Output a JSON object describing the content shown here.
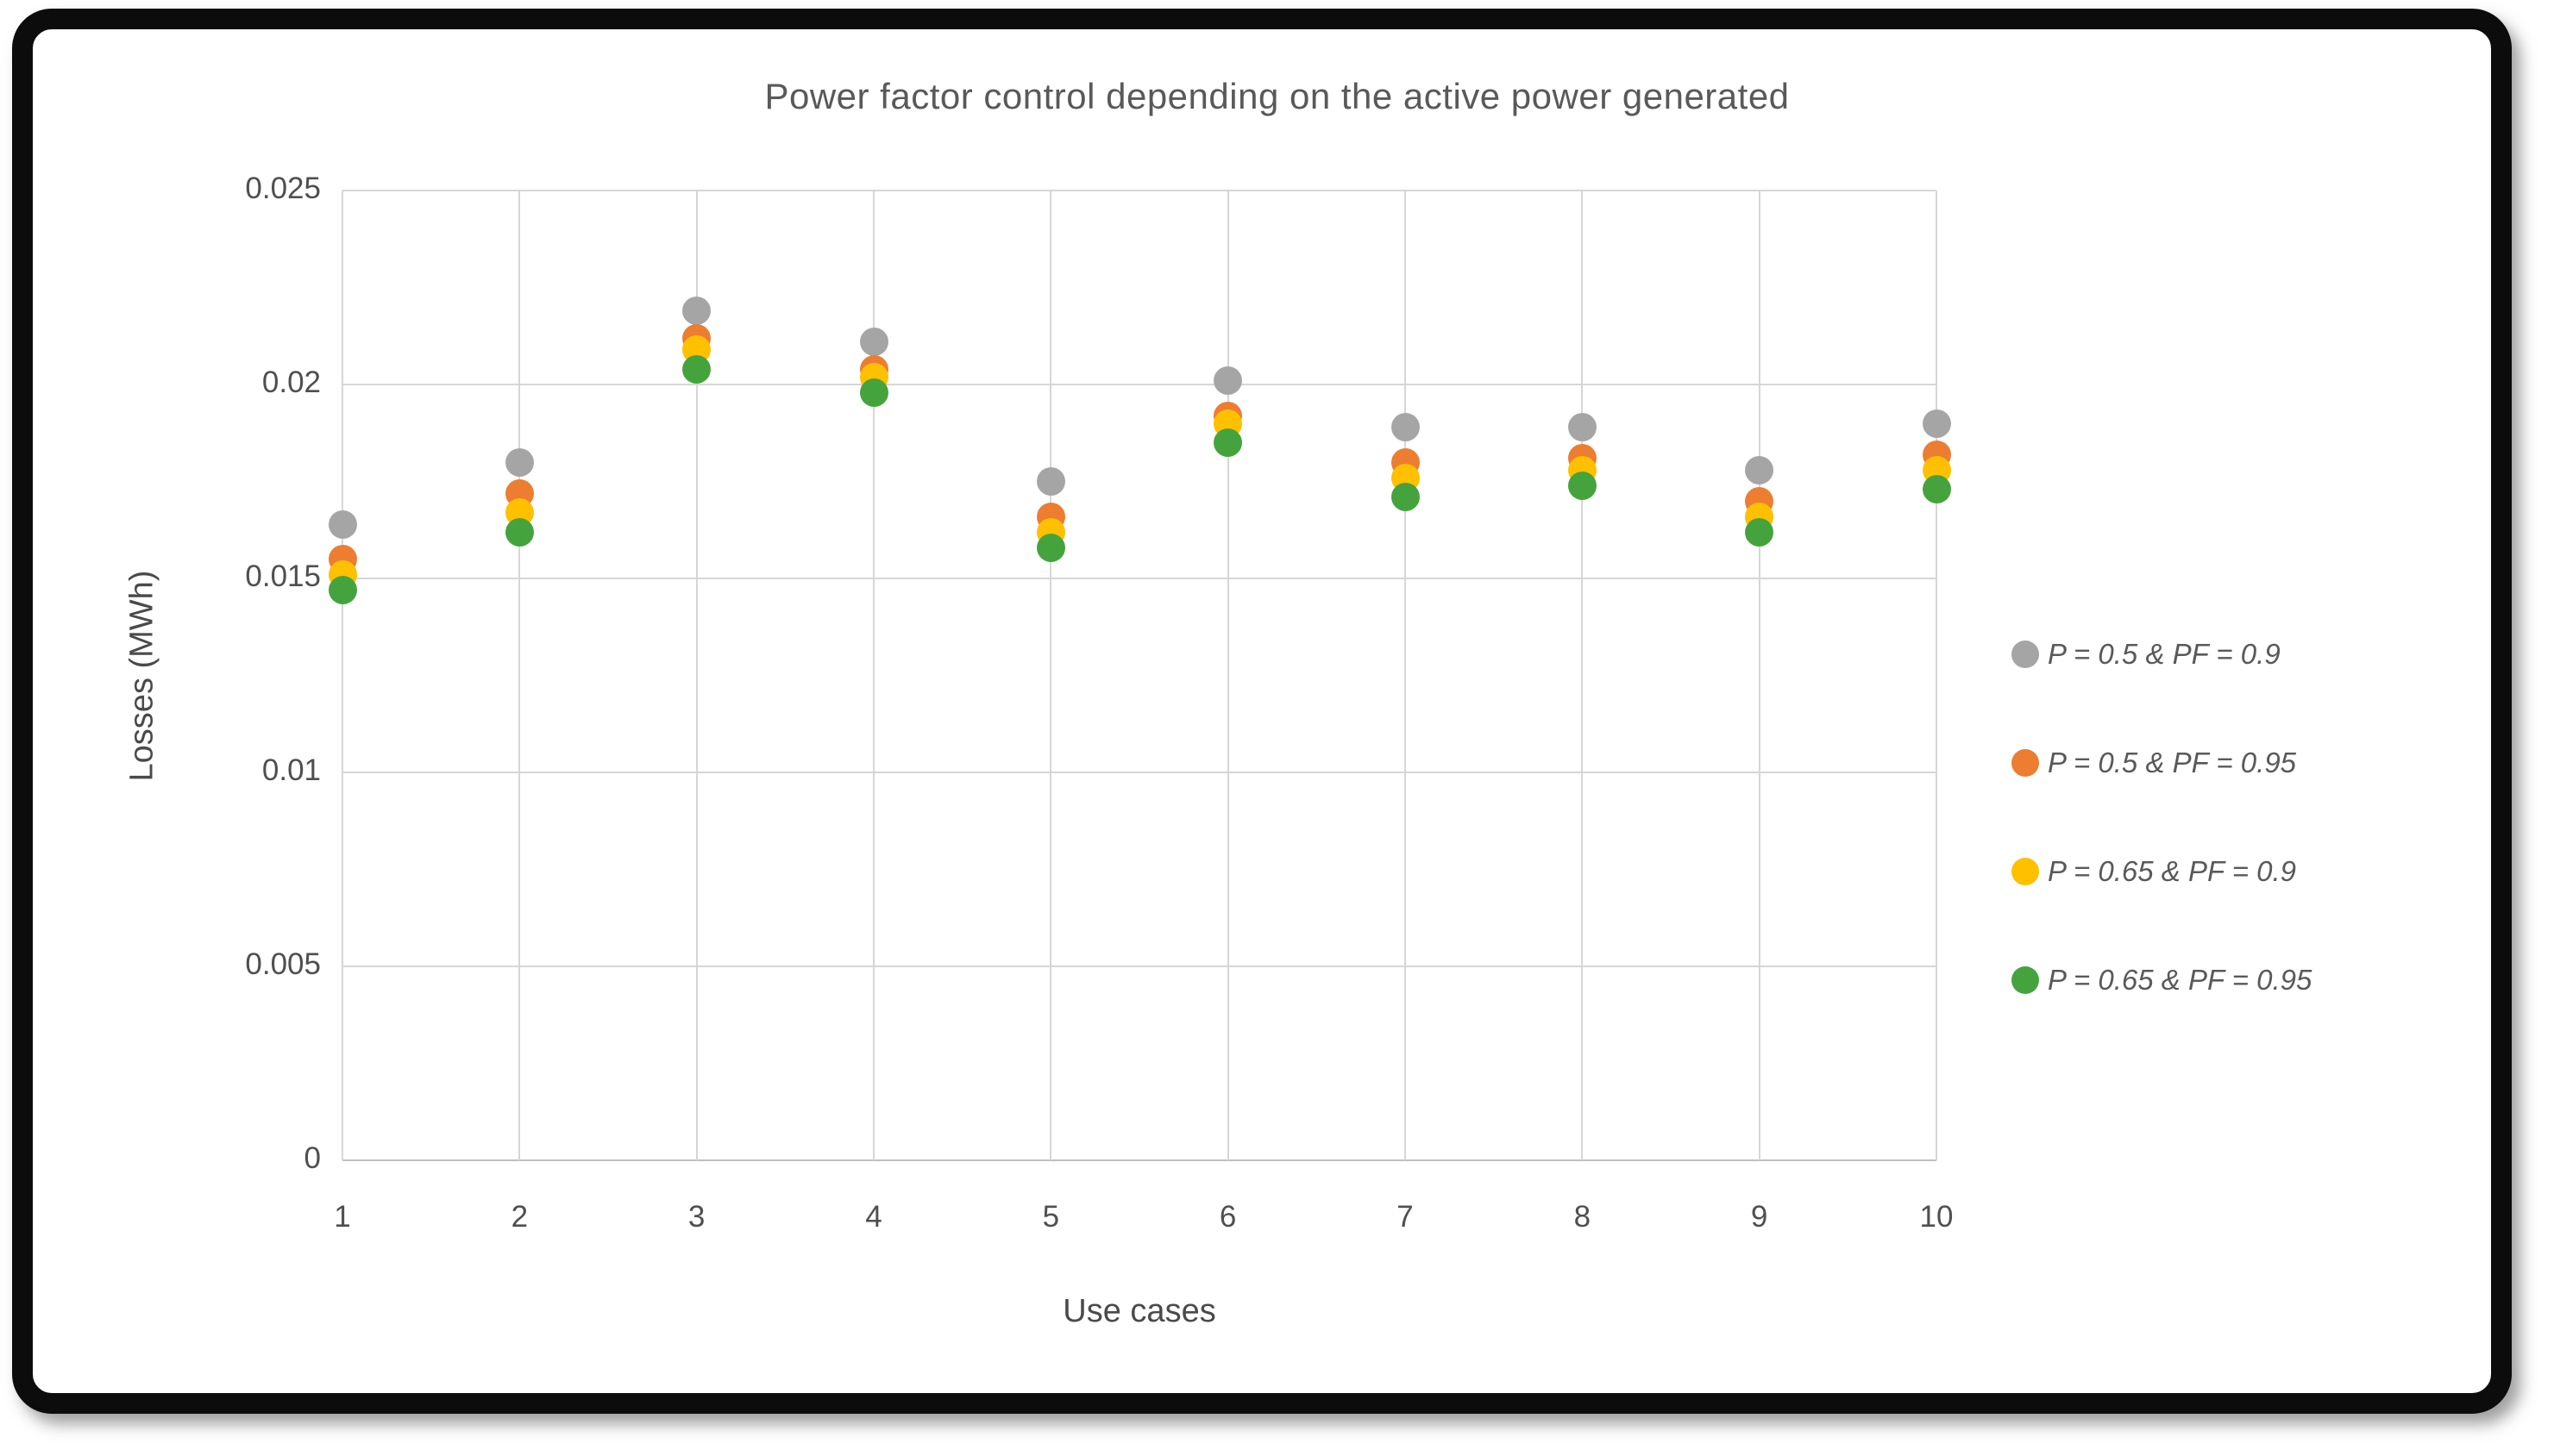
{
  "chart_data": {
    "type": "scatter",
    "title": "Power factor control depending on the active power generated",
    "xlabel": "Use cases",
    "ylabel": "Losses (MWh)",
    "x": [
      1,
      2,
      3,
      4,
      5,
      6,
      7,
      8,
      9,
      10
    ],
    "x_tick_labels": [
      "1",
      "2",
      "3",
      "4",
      "5",
      "6",
      "7",
      "8",
      "9",
      "10"
    ],
    "xlim": [
      1,
      10
    ],
    "ylim": [
      0,
      0.025
    ],
    "y_tick_values": [
      0,
      0.005,
      0.01,
      0.015,
      0.02,
      0.025
    ],
    "y_tick_labels": [
      "0",
      "0.005",
      "0.01",
      "0.015",
      "0.02",
      "0.025"
    ],
    "grid": true,
    "legend_position": "right",
    "marker": "circle",
    "series": [
      {
        "name": "P = 0.5 & PF = 0.9",
        "color": "#a5a5a5",
        "values": [
          0.0164,
          0.018,
          0.0219,
          0.0211,
          0.0175,
          0.0201,
          0.0189,
          0.0189,
          0.0178,
          0.019
        ]
      },
      {
        "name": "P = 0.5 & PF = 0.95",
        "color": "#ed7d31",
        "values": [
          0.0155,
          0.0172,
          0.0212,
          0.0204,
          0.0166,
          0.0192,
          0.018,
          0.0181,
          0.017,
          0.0182
        ]
      },
      {
        "name": "P = 0.65 & PF = 0.9",
        "color": "#ffc000",
        "values": [
          0.0151,
          0.0167,
          0.0209,
          0.0202,
          0.0162,
          0.019,
          0.0176,
          0.0178,
          0.0166,
          0.0178
        ]
      },
      {
        "name": "P = 0.65 & PF = 0.95",
        "color": "#45a33e",
        "values": [
          0.0147,
          0.0162,
          0.0204,
          0.0198,
          0.0158,
          0.0185,
          0.0171,
          0.0174,
          0.0162,
          0.0173
        ]
      }
    ],
    "text_color": "#595959",
    "grid_color": "#d6d6d6"
  }
}
